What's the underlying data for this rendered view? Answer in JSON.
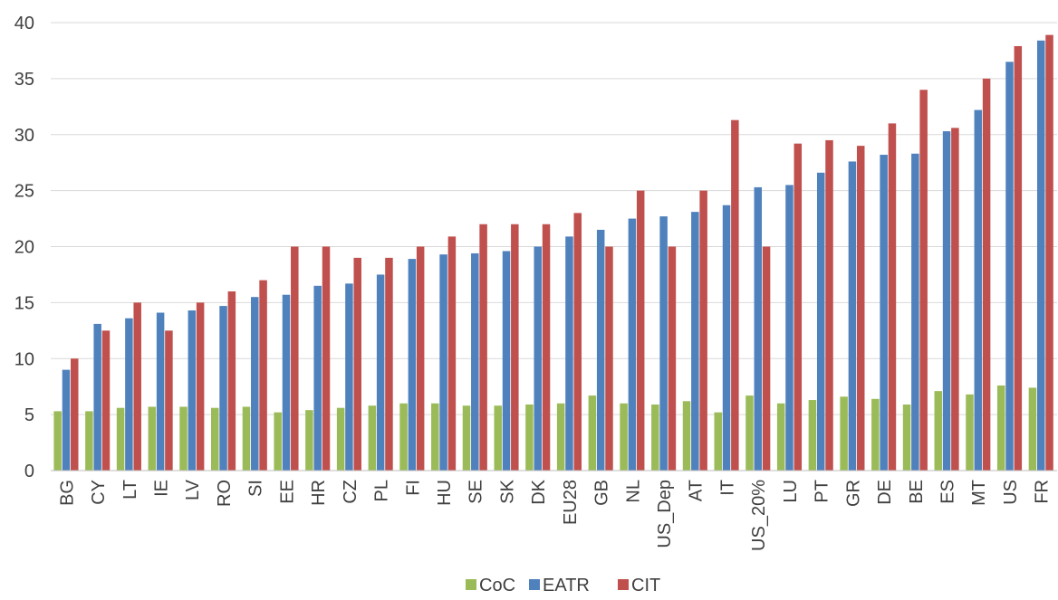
{
  "chart_data": {
    "type": "bar",
    "categories": [
      "BG",
      "CY",
      "LT",
      "IE",
      "LV",
      "RO",
      "SI",
      "EE",
      "HR",
      "CZ",
      "PL",
      "FI",
      "HU",
      "SE",
      "SK",
      "DK",
      "EU28",
      "GB",
      "NL",
      "US_Dep",
      "AT",
      "IT",
      "US_20%",
      "LU",
      "PT",
      "GR",
      "DE",
      "BE",
      "ES",
      "MT",
      "US",
      "FR"
    ],
    "series": [
      {
        "name": "CoC",
        "color": "#9bbb59",
        "values": [
          5.3,
          5.3,
          5.6,
          5.7,
          5.7,
          5.6,
          5.7,
          5.2,
          5.4,
          5.6,
          5.8,
          6.0,
          6.0,
          5.8,
          5.8,
          5.9,
          6.0,
          6.7,
          6.0,
          5.9,
          6.2,
          5.2,
          6.7,
          6.0,
          6.3,
          6.6,
          6.4,
          5.9,
          7.1,
          6.8,
          7.6,
          7.4
        ]
      },
      {
        "name": "EATR",
        "color": "#4f81bd",
        "values": [
          9.0,
          13.1,
          13.6,
          14.1,
          14.3,
          14.7,
          15.5,
          15.7,
          16.5,
          16.7,
          17.5,
          18.9,
          19.3,
          19.4,
          19.6,
          20.0,
          20.9,
          21.5,
          22.5,
          22.7,
          23.1,
          23.7,
          25.3,
          25.5,
          26.6,
          27.6,
          28.2,
          28.3,
          30.3,
          32.2,
          36.5,
          38.4
        ]
      },
      {
        "name": "CIT",
        "color": "#c0504d",
        "values": [
          10.0,
          12.5,
          15.0,
          12.5,
          15.0,
          16.0,
          17.0,
          20.0,
          20.0,
          19.0,
          19.0,
          20.0,
          20.9,
          22.0,
          22.0,
          22.0,
          23.0,
          20.0,
          25.0,
          20.0,
          25.0,
          31.3,
          20.0,
          29.2,
          29.5,
          29.0,
          31.0,
          34.0,
          30.6,
          35.0,
          37.9,
          38.9
        ]
      }
    ],
    "ylim": [
      0,
      40
    ],
    "yticks": [
      "0",
      "5",
      "10",
      "15",
      "20",
      "25",
      "30",
      "35",
      "40"
    ],
    "grid": true,
    "legend": "bottom-center"
  }
}
